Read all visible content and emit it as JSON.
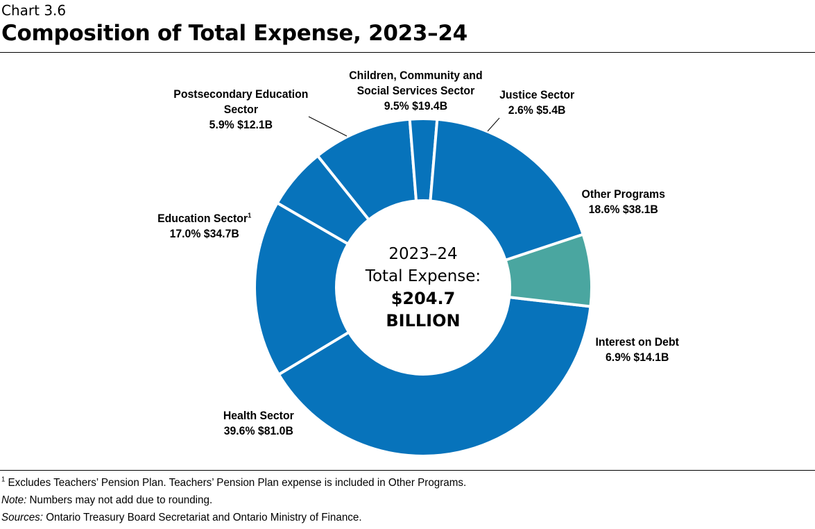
{
  "header": {
    "chart_number": "Chart 3.6",
    "title": "Composition of Total Expense, 2023–24"
  },
  "chart_data": {
    "type": "pie",
    "variant": "donut",
    "title": "Composition of Total Expense, 2023–24",
    "center_label": {
      "line1": "2023–24",
      "line2": "Total Expense:",
      "value": "$204.7",
      "unit": "BILLION"
    },
    "slices": [
      {
        "name": "Health Sector",
        "percent": 39.6,
        "amount": 81.0,
        "percent_label": "39.6%",
        "amount_label": "$81.0B",
        "color": "#0773bb"
      },
      {
        "name": "Education Sector",
        "footnote_mark": "1",
        "percent": 17.0,
        "amount": 34.7,
        "percent_label": "17.0%",
        "amount_label": "$34.7B",
        "color": "#0773bb"
      },
      {
        "name": "Postsecondary Education Sector",
        "percent": 5.9,
        "amount": 12.1,
        "percent_label": "5.9%",
        "amount_label": "$12.1B",
        "color": "#0773bb"
      },
      {
        "name": "Children, Community and Social Services Sector",
        "percent": 9.5,
        "amount": 19.4,
        "percent_label": "9.5%",
        "amount_label": "$19.4B",
        "color": "#0773bb"
      },
      {
        "name": "Justice Sector",
        "percent": 2.6,
        "amount": 5.4,
        "percent_label": "2.6%",
        "amount_label": "$5.4B",
        "color": "#0773bb"
      },
      {
        "name": "Other Programs",
        "percent": 18.6,
        "amount": 38.1,
        "percent_label": "18.6%",
        "amount_label": "$38.1B",
        "color": "#0773bb"
      },
      {
        "name": "Interest on Debt",
        "percent": 6.9,
        "amount": 14.1,
        "percent_label": "6.9%",
        "amount_label": "$14.1B",
        "color": "#4aa6a0"
      }
    ]
  },
  "labels": {
    "health": {
      "line1": "Health Sector",
      "line2": "39.6%  $81.0B"
    },
    "education": {
      "line1": "Education Sector",
      "sup": "1",
      "line2": "17.0%  $34.7B"
    },
    "postsecondary": {
      "line1": "Postsecondary Education",
      "line2": "Sector",
      "line3": "5.9%  $12.1B"
    },
    "children": {
      "line1": "Children, Community and",
      "line2": "Social Services Sector",
      "line3": "9.5%  $19.4B"
    },
    "justice": {
      "line1": "Justice Sector",
      "line2": "2.6%  $5.4B"
    },
    "other": {
      "line1": "Other Programs",
      "line2": "18.6%  $38.1B"
    },
    "interest": {
      "line1": "Interest on Debt",
      "line2": "6.9%  $14.1B"
    }
  },
  "footnotes": {
    "note1_mark": "1",
    "note1_text": " Excludes Teachers’ Pension Plan. Teachers’ Pension Plan expense is included in Other Programs.",
    "note_label": "Note:",
    "note_text": " Numbers may not add due to rounding.",
    "sources_label": "Sources:",
    "sources_text": " Ontario Treasury Board Secretariat and Ontario Ministry of Finance."
  }
}
